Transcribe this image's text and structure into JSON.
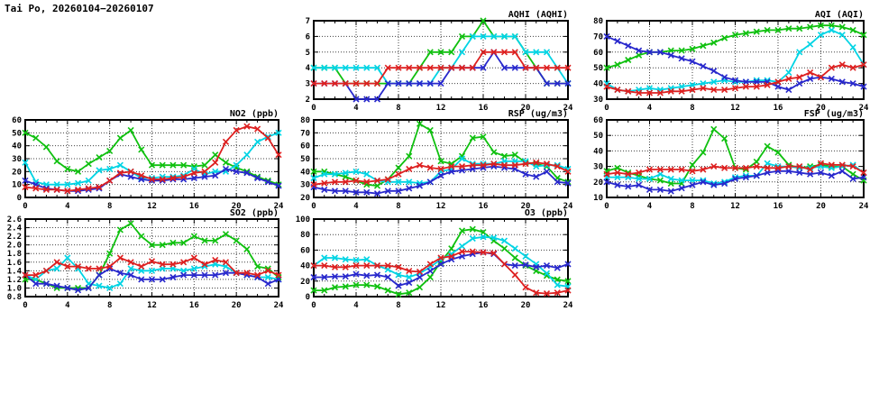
{
  "header": {
    "title": "Tai Po, 20260104−20260107"
  },
  "series_colors": {
    "red": "#dd2020",
    "green": "#0fc00f",
    "blue": "#2828cc",
    "cyan": "#00d4e4"
  },
  "style": {
    "grid_color": "#404040",
    "frame_color": "#000000",
    "background": "#ffffff"
  },
  "chart_data": [
    {
      "id": "aqhi",
      "type": "line",
      "title": "AQHI (AQHI)",
      "x_range": [
        0,
        24
      ],
      "x_major": 4,
      "x_minor": 1,
      "y_range": [
        2,
        7
      ],
      "y_major": 1,
      "y_decimals": 0,
      "grid": true,
      "legend": "none",
      "x": [
        0,
        1,
        2,
        3,
        4,
        5,
        6,
        7,
        8,
        9,
        10,
        11,
        12,
        13,
        14,
        15,
        16,
        17,
        18,
        19,
        20,
        21,
        22,
        23,
        24
      ],
      "series": [
        {
          "name": "green-series",
          "color": "green",
          "values": [
            4,
            4,
            4,
            3,
            3,
            3,
            3,
            3,
            3,
            3,
            4,
            5,
            5,
            5,
            6,
            6,
            7,
            6,
            6,
            6,
            5,
            4,
            3,
            3,
            3
          ]
        },
        {
          "name": "cyan-series",
          "color": "cyan",
          "values": [
            4,
            4,
            4,
            4,
            4,
            4,
            4,
            3,
            3,
            3,
            3,
            3,
            4,
            4,
            5,
            6,
            6,
            6,
            6,
            6,
            5,
            5,
            5,
            4,
            3
          ]
        },
        {
          "name": "blue-series",
          "color": "blue",
          "values": [
            3,
            3,
            3,
            3,
            2,
            2,
            2,
            3,
            3,
            3,
            3,
            3,
            3,
            4,
            4,
            4,
            4,
            5,
            4,
            4,
            4,
            4,
            3,
            3,
            3
          ]
        },
        {
          "name": "red-series",
          "color": "red",
          "values": [
            3,
            3,
            3,
            3,
            3,
            3,
            3,
            4,
            4,
            4,
            4,
            4,
            4,
            4,
            4,
            4,
            5,
            5,
            5,
            5,
            4,
            4,
            4,
            4,
            4
          ]
        }
      ]
    },
    {
      "id": "aqi",
      "type": "line",
      "title": "AQI (AQI)",
      "x_range": [
        0,
        24
      ],
      "x_major": 4,
      "x_minor": 1,
      "y_range": [
        30,
        80
      ],
      "y_major": 10,
      "y_decimals": 0,
      "grid": true,
      "legend": "none",
      "x": [
        0,
        1,
        2,
        3,
        4,
        5,
        6,
        7,
        8,
        9,
        10,
        11,
        12,
        13,
        14,
        15,
        16,
        17,
        18,
        19,
        20,
        21,
        22,
        23,
        24
      ],
      "series": [
        {
          "name": "green-series",
          "color": "green",
          "values": [
            50,
            52,
            55,
            58,
            60,
            60,
            61,
            61,
            62,
            64,
            66,
            69,
            71,
            72,
            73,
            74,
            74,
            75,
            75,
            76,
            77,
            77,
            76,
            74,
            71
          ]
        },
        {
          "name": "cyan-series",
          "color": "cyan",
          "values": [
            40,
            36,
            35,
            36,
            37,
            36,
            37,
            38,
            39,
            40,
            41,
            42,
            41,
            41,
            42,
            42,
            41,
            47,
            60,
            65,
            71,
            74,
            71,
            63,
            52
          ]
        },
        {
          "name": "blue-series",
          "color": "blue",
          "values": [
            70,
            67,
            64,
            61,
            60,
            60,
            58,
            56,
            54,
            51,
            48,
            44,
            42,
            41,
            41,
            41,
            38,
            36,
            40,
            43,
            44,
            43,
            41,
            40,
            38
          ]
        },
        {
          "name": "red-series",
          "color": "red",
          "values": [
            38,
            36,
            35,
            34,
            34,
            34,
            35,
            35,
            36,
            37,
            36,
            36,
            37,
            38,
            38,
            39,
            41,
            43,
            44,
            47,
            44,
            50,
            52,
            50,
            52
          ]
        }
      ]
    },
    {
      "id": "no2",
      "type": "line",
      "title": "NO2 (ppb)",
      "x_range": [
        0,
        24
      ],
      "x_major": 4,
      "x_minor": 1,
      "y_range": [
        0,
        60
      ],
      "y_major": 10,
      "y_decimals": 0,
      "grid": true,
      "legend": "none",
      "x": [
        0,
        1,
        2,
        3,
        4,
        5,
        6,
        7,
        8,
        9,
        10,
        11,
        12,
        13,
        14,
        15,
        16,
        17,
        18,
        19,
        20,
        21,
        22,
        23,
        24
      ],
      "series": [
        {
          "name": "green-series",
          "color": "green",
          "values": [
            50,
            46,
            39,
            28,
            22,
            20,
            26,
            31,
            36,
            46,
            52,
            37,
            25,
            25,
            25,
            25,
            24,
            25,
            33,
            27,
            23,
            20,
            16,
            13,
            10
          ]
        },
        {
          "name": "cyan-series",
          "color": "cyan",
          "values": [
            27,
            12,
            10,
            10,
            10,
            11,
            13,
            21,
            22,
            25,
            20,
            15,
            15,
            16,
            16,
            17,
            22,
            18,
            20,
            20,
            25,
            33,
            43,
            47,
            50
          ]
        },
        {
          "name": "blue-series",
          "color": "blue",
          "values": [
            13,
            10,
            7,
            6,
            5,
            5,
            6,
            7,
            13,
            18,
            16,
            14,
            13,
            13,
            14,
            14,
            15,
            16,
            17,
            22,
            20,
            19,
            15,
            12,
            9
          ]
        },
        {
          "name": "red-series",
          "color": "red",
          "values": [
            8,
            7,
            6,
            6,
            5,
            6,
            7,
            8,
            13,
            19,
            20,
            17,
            14,
            14,
            15,
            16,
            19,
            20,
            27,
            43,
            52,
            55,
            53,
            46,
            33
          ]
        }
      ]
    },
    {
      "id": "rsp",
      "type": "line",
      "title": "RSP (ug/m3)",
      "x_range": [
        0,
        24
      ],
      "x_major": 4,
      "x_minor": 1,
      "y_range": [
        20,
        80
      ],
      "y_major": 10,
      "y_decimals": 0,
      "grid": true,
      "legend": "none",
      "x": [
        0,
        1,
        2,
        3,
        4,
        5,
        6,
        7,
        8,
        9,
        10,
        11,
        12,
        13,
        14,
        15,
        16,
        17,
        18,
        19,
        20,
        21,
        22,
        23,
        24
      ],
      "series": [
        {
          "name": "green-series",
          "color": "green",
          "values": [
            40,
            40,
            38,
            36,
            33,
            30,
            29,
            34,
            43,
            52,
            77,
            72,
            48,
            46,
            52,
            66,
            67,
            55,
            52,
            53,
            47,
            46,
            44,
            35,
            32
          ]
        },
        {
          "name": "cyan-series",
          "color": "cyan",
          "values": [
            35,
            38,
            38,
            39,
            40,
            38,
            33,
            32,
            32,
            32,
            31,
            32,
            40,
            42,
            50,
            46,
            46,
            46,
            48,
            48,
            48,
            44,
            45,
            45,
            42
          ]
        },
        {
          "name": "blue-series",
          "color": "blue",
          "values": [
            28,
            26,
            25,
            25,
            24,
            24,
            23,
            25,
            25,
            27,
            29,
            32,
            37,
            40,
            41,
            42,
            43,
            44,
            43,
            42,
            38,
            36,
            40,
            32,
            31
          ]
        },
        {
          "name": "red-series",
          "color": "red",
          "values": [
            30,
            31,
            32,
            32,
            33,
            32,
            33,
            34,
            38,
            42,
            45,
            43,
            42,
            44,
            44,
            45,
            45,
            46,
            45,
            45,
            46,
            47,
            46,
            44,
            40
          ]
        }
      ]
    },
    {
      "id": "fsp",
      "type": "line",
      "title": "FSP (ug/m3)",
      "x_range": [
        0,
        24
      ],
      "x_major": 4,
      "x_minor": 1,
      "y_range": [
        10,
        60
      ],
      "y_major": 10,
      "y_decimals": 0,
      "grid": true,
      "legend": "none",
      "x": [
        0,
        1,
        2,
        3,
        4,
        5,
        6,
        7,
        8,
        9,
        10,
        11,
        12,
        13,
        14,
        15,
        16,
        17,
        18,
        19,
        20,
        21,
        22,
        23,
        24
      ],
      "series": [
        {
          "name": "green-series",
          "color": "green",
          "values": [
            27,
            29,
            26,
            24,
            22,
            21,
            19,
            19,
            31,
            39,
            54,
            48,
            29,
            28,
            33,
            43,
            39,
            31,
            29,
            30,
            31,
            30,
            30,
            25,
            21
          ]
        },
        {
          "name": "cyan-series",
          "color": "cyan",
          "values": [
            23,
            23,
            23,
            22,
            22,
            25,
            22,
            21,
            21,
            21,
            19,
            20,
            23,
            24,
            24,
            32,
            30,
            30,
            29,
            29,
            30,
            29,
            30,
            31,
            26
          ]
        },
        {
          "name": "blue-series",
          "color": "blue",
          "values": [
            20,
            18,
            17,
            18,
            15,
            15,
            14,
            16,
            18,
            20,
            18,
            19,
            22,
            23,
            24,
            26,
            27,
            27,
            26,
            25,
            26,
            24,
            27,
            22,
            23
          ]
        },
        {
          "name": "red-series",
          "color": "red",
          "values": [
            25,
            26,
            25,
            26,
            28,
            28,
            28,
            28,
            27,
            28,
            30,
            29,
            29,
            29,
            30,
            29,
            29,
            30,
            30,
            28,
            32,
            31,
            31,
            30,
            26
          ]
        }
      ]
    },
    {
      "id": "so2",
      "type": "line",
      "title": "SO2 (ppb)",
      "x_range": [
        0,
        24
      ],
      "x_major": 4,
      "x_minor": 1,
      "y_range": [
        0.8,
        2.6
      ],
      "y_major": 0.2,
      "y_decimals": 1,
      "grid": true,
      "legend": "none",
      "x": [
        0,
        1,
        2,
        3,
        4,
        5,
        6,
        7,
        8,
        9,
        10,
        11,
        12,
        13,
        14,
        15,
        16,
        17,
        18,
        19,
        20,
        21,
        22,
        23,
        24
      ],
      "series": [
        {
          "name": "green-series",
          "color": "green",
          "values": [
            1.2,
            1.2,
            1.1,
            1.0,
            1.0,
            1.0,
            1.0,
            1.3,
            1.8,
            2.35,
            2.5,
            2.2,
            2.0,
            2.0,
            2.05,
            2.05,
            2.2,
            2.1,
            2.1,
            2.25,
            2.1,
            1.9,
            1.5,
            1.45,
            1.25
          ]
        },
        {
          "name": "cyan-series",
          "color": "cyan",
          "values": [
            1.3,
            1.2,
            1.4,
            1.45,
            1.7,
            1.45,
            1.1,
            1.05,
            1.0,
            1.1,
            1.45,
            1.4,
            1.4,
            1.45,
            1.45,
            1.4,
            1.45,
            1.5,
            1.55,
            1.5,
            1.35,
            1.3,
            1.25,
            1.25,
            1.2
          ]
        },
        {
          "name": "blue-series",
          "color": "blue",
          "values": [
            1.3,
            1.1,
            1.1,
            1.05,
            1.0,
            0.95,
            1.0,
            1.3,
            1.45,
            1.35,
            1.3,
            1.2,
            1.2,
            1.2,
            1.25,
            1.3,
            1.3,
            1.3,
            1.3,
            1.35,
            1.35,
            1.3,
            1.25,
            1.1,
            1.2
          ]
        },
        {
          "name": "red-series",
          "color": "red",
          "values": [
            1.3,
            1.3,
            1.4,
            1.6,
            1.5,
            1.5,
            1.45,
            1.45,
            1.5,
            1.7,
            1.6,
            1.5,
            1.62,
            1.55,
            1.55,
            1.6,
            1.7,
            1.55,
            1.65,
            1.6,
            1.35,
            1.35,
            1.3,
            1.4,
            1.3
          ]
        }
      ]
    },
    {
      "id": "o3",
      "type": "line",
      "title": "O3 (ppb)",
      "x_range": [
        0,
        24
      ],
      "x_major": 4,
      "x_minor": 1,
      "y_range": [
        0,
        100
      ],
      "y_major": 20,
      "y_decimals": 0,
      "grid": true,
      "legend": "none",
      "x": [
        0,
        1,
        2,
        3,
        4,
        5,
        6,
        7,
        8,
        9,
        10,
        11,
        12,
        13,
        14,
        15,
        16,
        17,
        18,
        19,
        20,
        21,
        22,
        23,
        24
      ],
      "series": [
        {
          "name": "green-series",
          "color": "green",
          "values": [
            8,
            8,
            12,
            13,
            15,
            15,
            13,
            8,
            3,
            5,
            12,
            25,
            45,
            62,
            85,
            87,
            83,
            72,
            62,
            50,
            40,
            33,
            27,
            22,
            20
          ]
        },
        {
          "name": "cyan-series",
          "color": "cyan",
          "values": [
            40,
            50,
            50,
            48,
            47,
            48,
            40,
            35,
            28,
            25,
            30,
            38,
            48,
            55,
            65,
            75,
            77,
            76,
            72,
            62,
            52,
            42,
            30,
            15,
            13
          ]
        },
        {
          "name": "blue-series",
          "color": "blue",
          "values": [
            25,
            25,
            26,
            26,
            29,
            27,
            28,
            25,
            14,
            18,
            25,
            33,
            42,
            48,
            52,
            55,
            57,
            55,
            42,
            40,
            41,
            38,
            40,
            37,
            42
          ]
        },
        {
          "name": "red-series",
          "color": "red",
          "values": [
            40,
            40,
            38,
            38,
            40,
            40,
            40,
            40,
            38,
            33,
            32,
            42,
            50,
            52,
            58,
            58,
            57,
            56,
            42,
            28,
            12,
            5,
            4,
            5,
            8
          ]
        }
      ]
    }
  ]
}
